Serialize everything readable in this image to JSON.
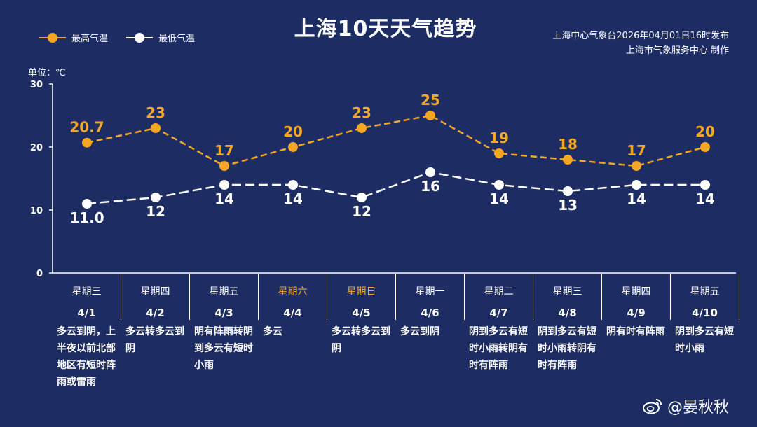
{
  "title": "上海10天天气趋势",
  "source_line1": "上海中心气象台2026年04月01日16时发布",
  "source_line2": "上海市气象服务中心 制作",
  "unit_label": "单位：℃",
  "legend": {
    "high": "最高气温",
    "low": "最低气温"
  },
  "colors": {
    "high": "#f5a623",
    "low": "#ffffff",
    "weekend": "#f5a623",
    "background": "#1d2d64"
  },
  "weibo": {
    "handle": "@晏秋秋",
    "icon": "weibo-icon"
  },
  "days": [
    {
      "weekday": "星期三",
      "date": "4/1",
      "weather": "多云到阴，上半夜以前北部地区有短时阵雨或雷雨"
    },
    {
      "weekday": "星期四",
      "date": "4/2",
      "weather": "多云转多云到阴"
    },
    {
      "weekday": "星期五",
      "date": "4/3",
      "weather": "阴有阵雨转阴到多云有短时小雨"
    },
    {
      "weekday": "星期六",
      "date": "4/4",
      "weather": "多云",
      "weekend": true
    },
    {
      "weekday": "星期日",
      "date": "4/5",
      "weather": "多云转多云到阴",
      "weekend": true
    },
    {
      "weekday": "星期一",
      "date": "4/6",
      "weather": "多云到阴"
    },
    {
      "weekday": "星期二",
      "date": "4/7",
      "weather": "阴到多云有短时小雨转阴有时有阵雨"
    },
    {
      "weekday": "星期三",
      "date": "4/8",
      "weather": "阴到多云有短时小雨转阴有时有阵雨"
    },
    {
      "weekday": "星期四",
      "date": "4/9",
      "weather": "阴有时有阵雨"
    },
    {
      "weekday": "星期五",
      "date": "4/10",
      "weather": "阴到多云有短时小雨"
    }
  ],
  "chart_data": {
    "type": "line",
    "title": "上海10天天气趋势",
    "categories": [
      "4/1",
      "4/2",
      "4/3",
      "4/4",
      "4/5",
      "4/6",
      "4/7",
      "4/8",
      "4/9",
      "4/10"
    ],
    "series": [
      {
        "name": "最高气温",
        "values": [
          20.7,
          23,
          17,
          20,
          23,
          25,
          19,
          18,
          17,
          20
        ],
        "labels": [
          "20.7",
          "23",
          "17",
          "20",
          "23",
          "25",
          "19",
          "18",
          "17",
          "20"
        ]
      },
      {
        "name": "最低气温",
        "values": [
          11.0,
          12,
          14,
          14,
          12,
          16,
          14,
          13,
          14,
          14
        ],
        "labels": [
          "11.0",
          "12",
          "14",
          "14",
          "12",
          "16",
          "14",
          "13",
          "14",
          "14"
        ]
      }
    ],
    "ylabel": "单位：℃",
    "ylim": [
      0,
      30
    ],
    "yticks": [
      "0",
      "10",
      "20",
      "30"
    ],
    "legend_position": "top-left"
  }
}
